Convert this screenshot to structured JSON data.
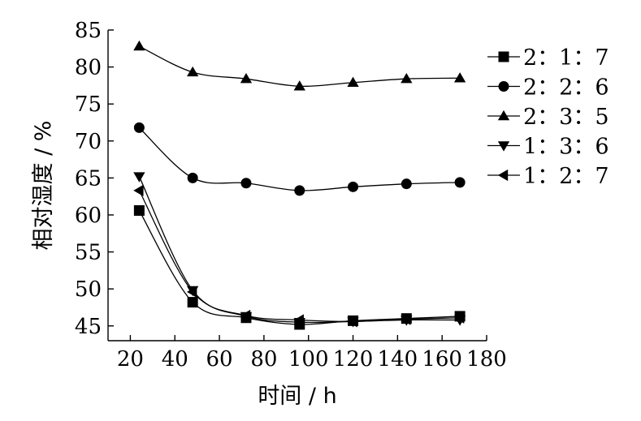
{
  "chart_data": {
    "type": "line",
    "xlabel": "时间 / h",
    "ylabel": "相对湿度 / %",
    "xlim": [
      10,
      180
    ],
    "ylim": [
      43,
      85
    ],
    "xticks": [
      20,
      40,
      60,
      80,
      100,
      120,
      140,
      160,
      180
    ],
    "yticks": [
      45,
      50,
      55,
      60,
      65,
      70,
      75,
      80,
      85
    ],
    "x": [
      24,
      48,
      72,
      96,
      120,
      144,
      168
    ],
    "legend_position": "top-right",
    "series": [
      {
        "name": "2：1：7",
        "marker": "square",
        "values": [
          60.6,
          48.2,
          46.1,
          45.2,
          45.7,
          46.0,
          46.3
        ]
      },
      {
        "name": "2：2：6",
        "marker": "circle",
        "values": [
          71.8,
          65.0,
          64.3,
          63.3,
          63.8,
          64.2,
          64.4
        ]
      },
      {
        "name": "2：3：5",
        "marker": "triangle-up",
        "values": [
          82.8,
          79.3,
          78.4,
          77.4,
          77.9,
          78.4,
          78.5
        ]
      },
      {
        "name": "1：3：6",
        "marker": "triangle-down",
        "values": [
          65.2,
          49.8,
          46.3,
          45.5,
          45.6,
          45.8,
          45.8
        ]
      },
      {
        "name": "1：2：7",
        "marker": "triangle-left",
        "values": [
          63.3,
          49.6,
          46.4,
          45.8,
          45.6,
          45.9,
          46.1
        ]
      }
    ]
  }
}
